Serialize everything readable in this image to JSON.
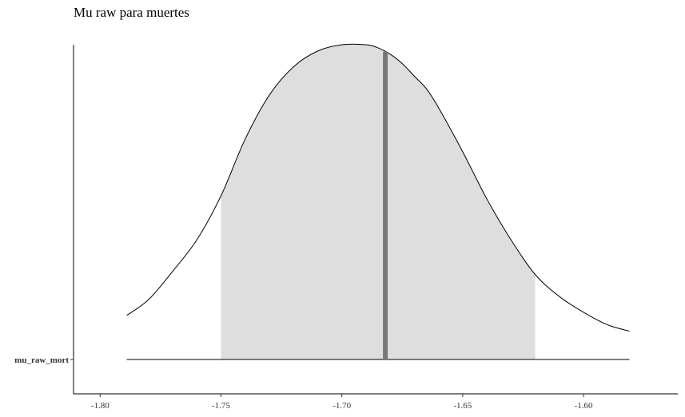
{
  "chart_data": {
    "type": "area",
    "title": "Mu raw para muertes",
    "parameter": "mu_raw_mort",
    "xlabel": "",
    "ylabel": "",
    "xlim": [
      -1.811,
      -1.561
    ],
    "x_ticks": [
      -1.8,
      -1.75,
      -1.7,
      -1.65,
      -1.6
    ],
    "x_tick_labels": [
      "-1.80",
      "-1.75",
      "-1.70",
      "-1.65",
      "-1.60"
    ],
    "y_tick_labels": [
      "mu_raw_mort"
    ],
    "density_range": [
      -1.789,
      -1.581
    ],
    "shaded_interval": [
      -1.75,
      -1.62
    ],
    "point_estimate": -1.682,
    "density": {
      "x": [
        -1.789,
        -1.78,
        -1.77,
        -1.76,
        -1.75,
        -1.74,
        -1.73,
        -1.72,
        -1.71,
        -1.7,
        -1.69,
        -1.685,
        -1.68,
        -1.675,
        -1.67,
        -1.665,
        -1.66,
        -1.65,
        -1.64,
        -1.63,
        -1.62,
        -1.61,
        -1.6,
        -1.59,
        -1.581
      ],
      "y": [
        0.14,
        0.19,
        0.28,
        0.38,
        0.52,
        0.7,
        0.84,
        0.93,
        0.98,
        1.0,
        1.0,
        0.99,
        0.97,
        0.94,
        0.9,
        0.86,
        0.8,
        0.66,
        0.51,
        0.38,
        0.27,
        0.2,
        0.15,
        0.11,
        0.09
      ]
    },
    "grid": false,
    "colors": {
      "interval_fill": "#dedede",
      "density_line": "#000000",
      "point_line": "#777777",
      "axis": "#000000"
    }
  }
}
